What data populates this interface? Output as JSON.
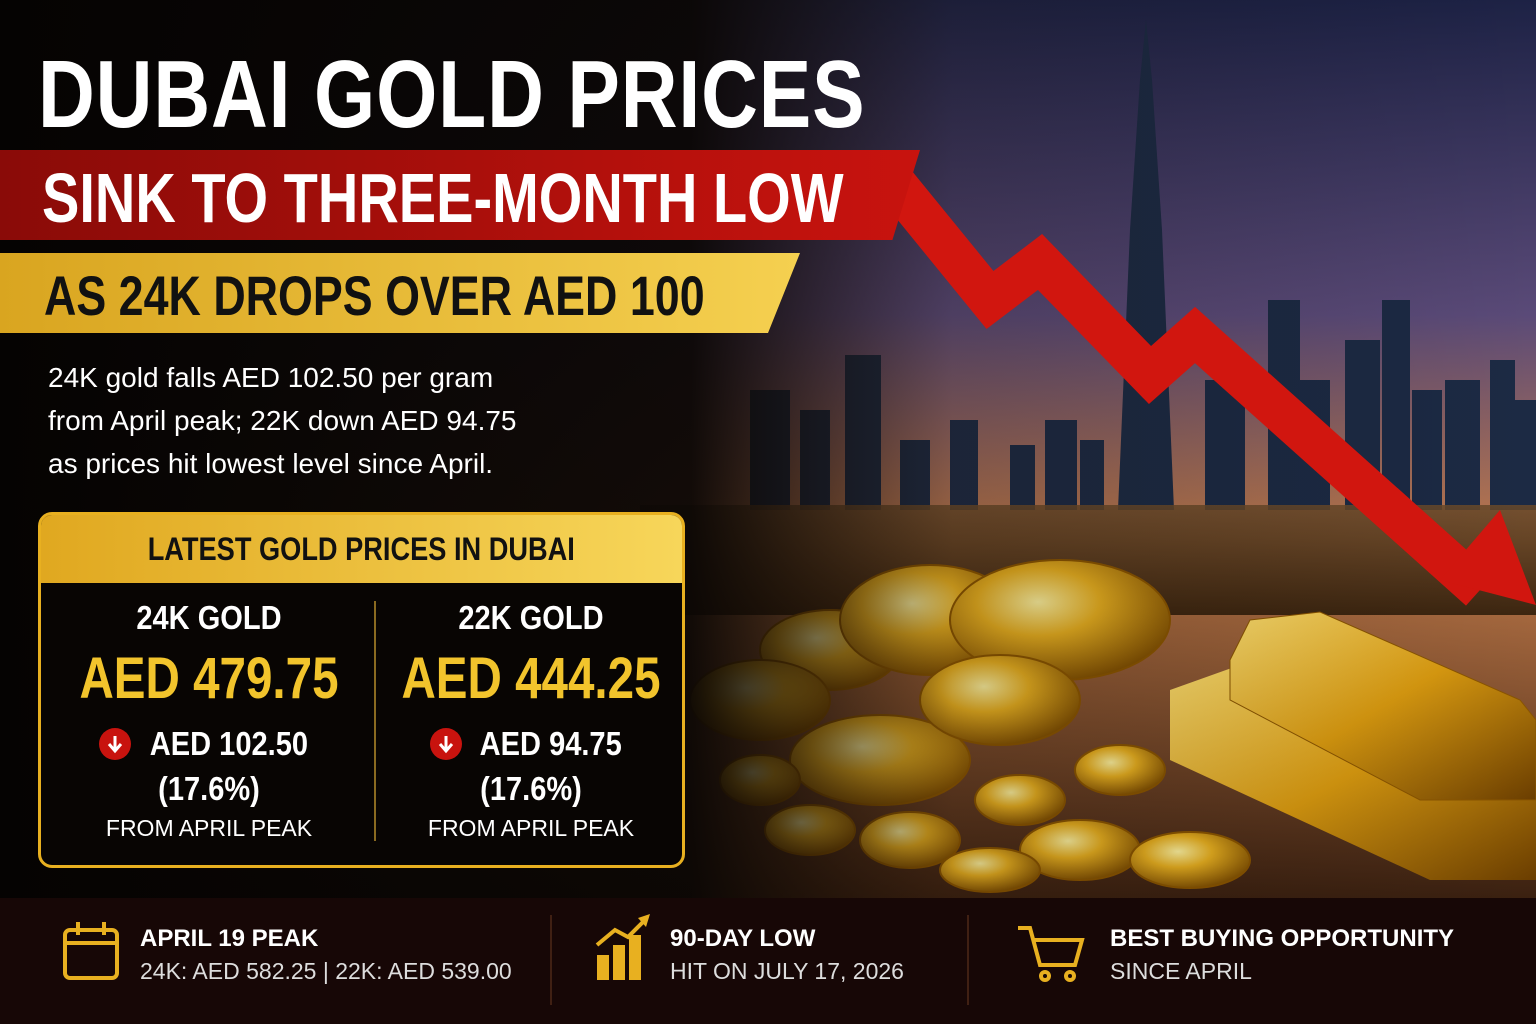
{
  "headline": {
    "title": "DUBAI GOLD PRICES",
    "banner": "SINK TO THREE-MONTH LOW",
    "subbanner": "AS 24K DROPS OVER AED 100"
  },
  "summary": [
    "24K gold falls AED 102.50 per gram",
    "from April peak; 22K down AED 94.75",
    "as prices hit lowest level since April."
  ],
  "price_box": {
    "title": "LATEST GOLD PRICES IN DUBAI",
    "items": [
      {
        "label": "24K GOLD",
        "price": "AED 479.75",
        "change": "AED 102.50",
        "percent": "(17.6%)",
        "note": "FROM APRIL PEAK"
      },
      {
        "label": "22K GOLD",
        "price": "AED 444.25",
        "change": "AED 94.75",
        "percent": "(17.6%)",
        "note": "FROM APRIL PEAK"
      }
    ]
  },
  "footer": [
    {
      "title": "APRIL 19 PEAK",
      "detail": "24K: AED 582.25 | 22K: AED 539.00"
    },
    {
      "title": "90-DAY LOW",
      "detail": "HIT ON JULY 17, 2026"
    },
    {
      "title": "BEST BUYING OPPORTUNITY",
      "detail": "SINCE APRIL"
    }
  ]
}
